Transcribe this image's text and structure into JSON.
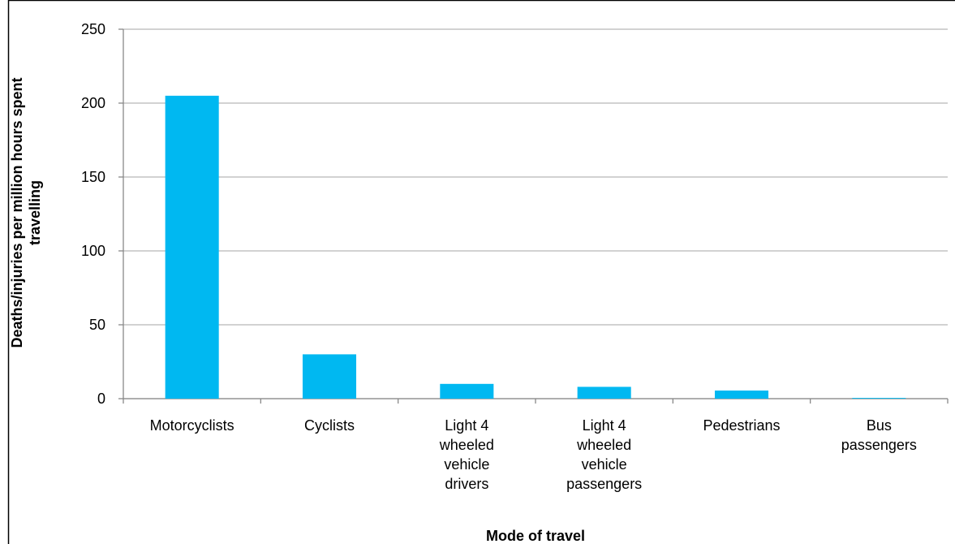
{
  "chart_data": {
    "type": "bar",
    "categories": [
      "Motorcyclists",
      "Cyclists",
      "Light 4\nwheeled\nvehicle\ndrivers",
      "Light 4\nwheeled\nvehicle\npassengers",
      "Pedestrians",
      "Bus\npassengers"
    ],
    "values": [
      205,
      30,
      10,
      8,
      5.5,
      0.5
    ],
    "color": "#00b8f1",
    "x_label": "Mode of travel",
    "y_label": "Deaths/injuries per million hours spent\ntravelling",
    "ylim": [
      0,
      250
    ],
    "yticks": [
      0,
      50,
      100,
      150,
      200,
      250
    ],
    "grid": true
  }
}
